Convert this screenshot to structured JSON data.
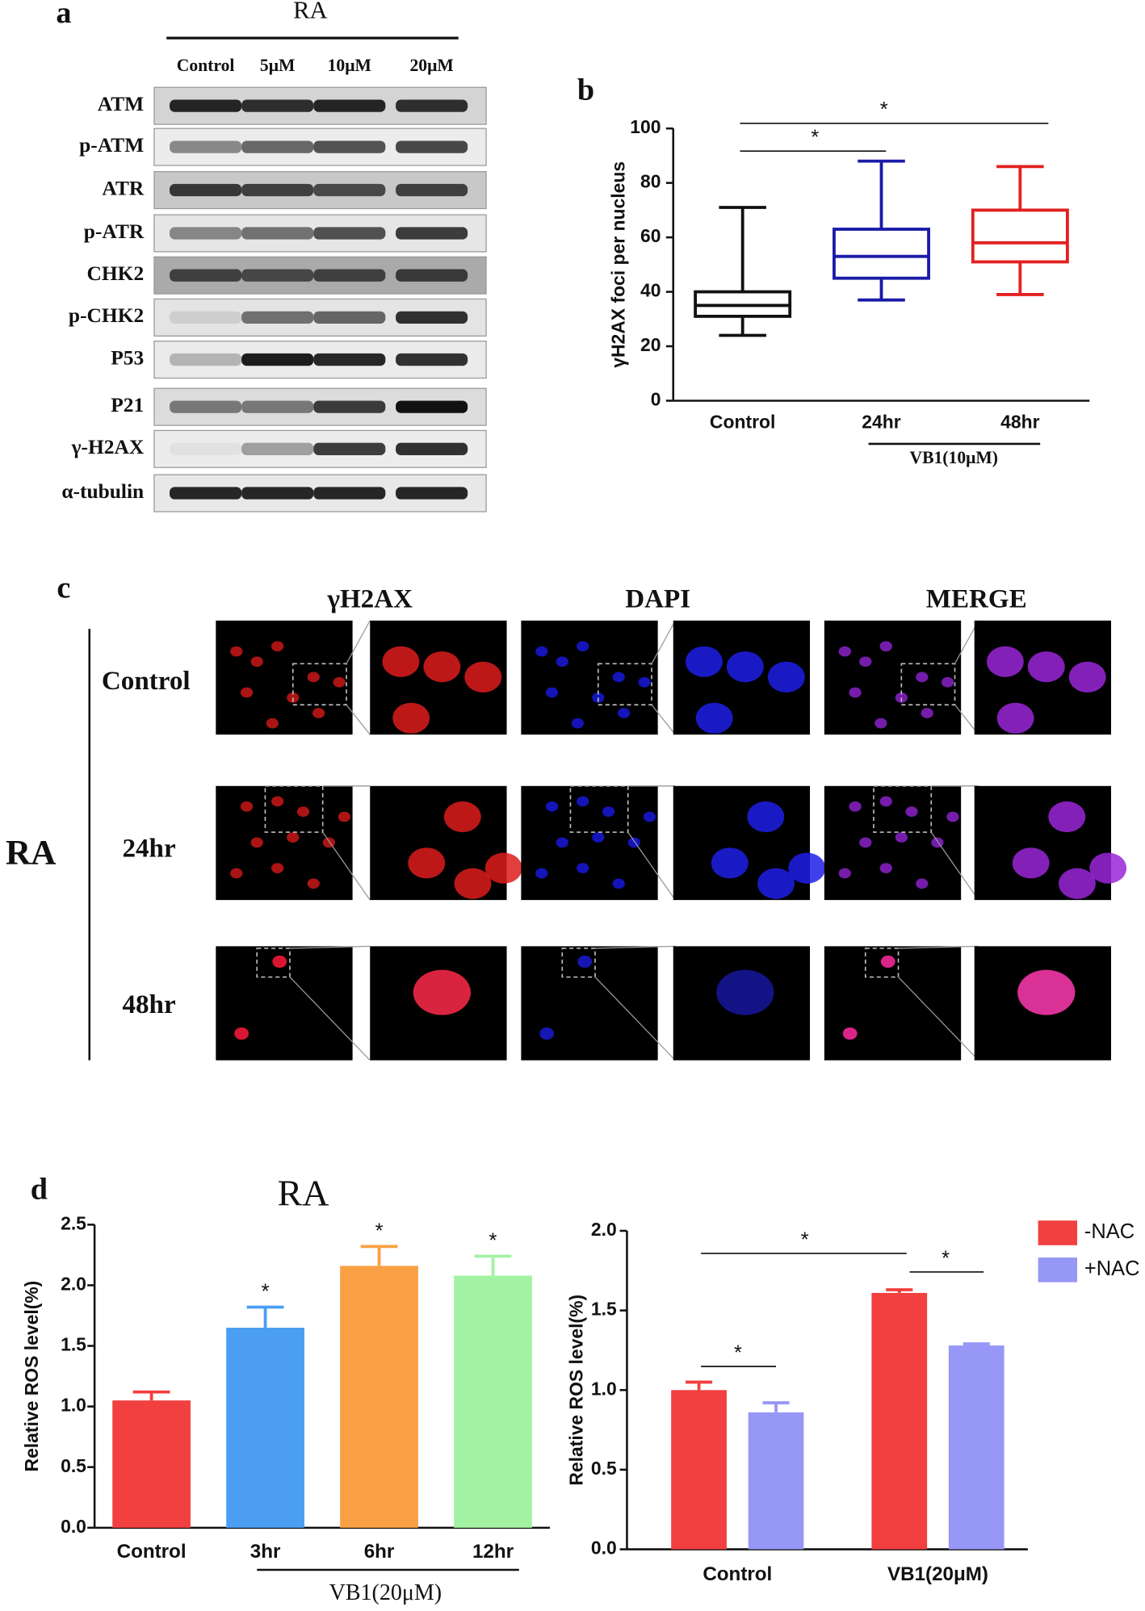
{
  "panel_a": {
    "label": "a",
    "treatment": "RA",
    "lanes": [
      "Control",
      "5μM",
      "10μM",
      "20μM"
    ],
    "proteins": [
      "ATM",
      "p-ATM",
      "ATR",
      "p-ATR",
      "CHK2",
      "p-CHK2",
      "P53",
      "P21",
      "γ-H2AX",
      "α-tubulin"
    ]
  },
  "panel_c": {
    "label": "c",
    "columns": [
      "γH2AX",
      "DAPI",
      "MERGE"
    ],
    "group": "RA",
    "rows": [
      "Control",
      "24hr",
      "48hr"
    ]
  },
  "chart_data": [
    {
      "type": "box",
      "label": "b",
      "ylabel": "γH2AX foci per nucleus",
      "categories": [
        "Control",
        "24hr",
        "48hr"
      ],
      "colors": [
        "#111111",
        "#1a1aa8",
        "#e41f1f"
      ],
      "whisker_low": [
        24,
        37,
        39
      ],
      "q1": [
        31,
        45,
        51
      ],
      "median": [
        35,
        53,
        58
      ],
      "q3": [
        40,
        63,
        70
      ],
      "whisker_high": [
        71,
        88,
        86
      ],
      "ylim": [
        0,
        100
      ],
      "yticks": [
        0,
        20,
        40,
        60,
        80,
        100
      ],
      "annotations": [
        "*",
        "*"
      ],
      "group_label": "VB1(10μM)"
    },
    {
      "type": "bar",
      "label": "d",
      "title": "RA",
      "ylabel": "Relative ROS level(%)",
      "categories": [
        "Control",
        "3hr",
        "6hr",
        "12hr"
      ],
      "values": [
        1.05,
        1.65,
        2.16,
        2.08
      ],
      "errors": [
        0.07,
        0.17,
        0.16,
        0.16
      ],
      "colors": [
        "#f23f3f",
        "#4b9ef2",
        "#f8a043",
        "#a3f2a3"
      ],
      "ylim": [
        0,
        2.5
      ],
      "yticks": [
        {
          "value": 0,
          "label": "0.0"
        },
        0.5,
        {
          "value": 1,
          "label": "1.0"
        },
        1.5,
        {
          "value": 2,
          "label": "2.0"
        },
        2.5
      ],
      "annotations": [
        "*",
        "*",
        "*"
      ],
      "group_label": "VB1(20μM)"
    },
    {
      "type": "grouped_bar",
      "ylabel": "Relative ROS level(%)",
      "categories": [
        "Control",
        "VB1(20μM)"
      ],
      "series": [
        {
          "name": "-NAC",
          "color": "#f23f3f",
          "values": [
            1.0,
            1.61
          ],
          "errors": [
            0.05,
            0.02
          ]
        },
        {
          "name": "+NAC",
          "color": "#9797f7",
          "values": [
            0.86,
            1.28
          ],
          "errors": [
            0.06,
            0.01
          ]
        }
      ],
      "ylim": [
        0,
        2
      ],
      "yticks": [
        {
          "value": 0,
          "label": "0.0"
        },
        0.5,
        {
          "value": 1,
          "label": "1.0"
        },
        1.5,
        {
          "value": 2,
          "label": "2.0"
        }
      ],
      "annotations": [
        "*",
        "*",
        "*"
      ]
    }
  ]
}
